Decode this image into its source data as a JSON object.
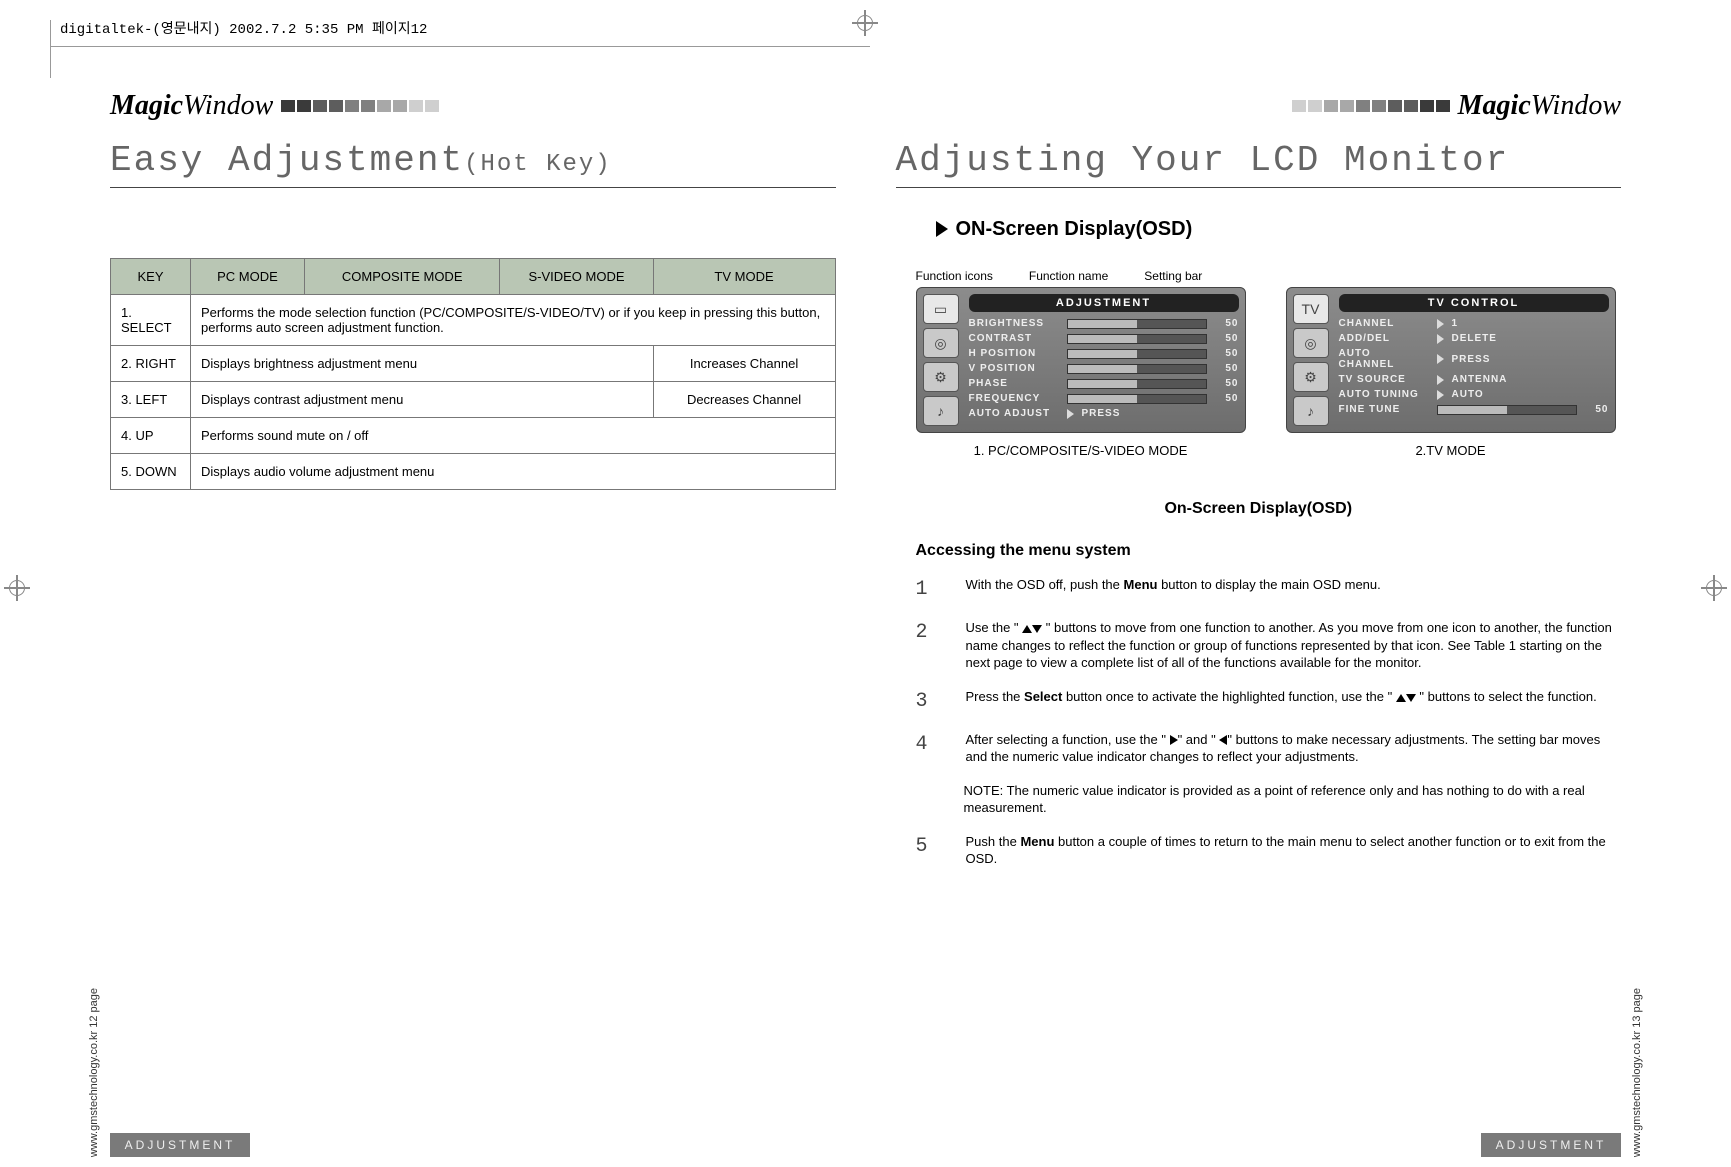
{
  "header_note": "digitaltek-(영문내지)  2002.7.2 5:35 PM  페이지12",
  "logo": {
    "bold": "Magic",
    "rest": "Window"
  },
  "block_colors": [
    "#3a3a3a",
    "#3a3a3a",
    "#5d5d5d",
    "#5d5d5d",
    "#808080",
    "#808080",
    "#a8a8a8",
    "#a8a8a8",
    "#cfcfcf",
    "#cfcfcf"
  ],
  "left_page": {
    "title_main": "Easy Adjustment",
    "title_sub": "(Hot Key)",
    "table": {
      "headers": [
        "KEY",
        "PC MODE",
        "COMPOSITE MODE",
        "S-VIDEO MODE",
        "TV MODE"
      ],
      "rows": [
        {
          "key": "1. SELECT",
          "span": "Performs the mode selection function (PC/COMPOSITE/S-VIDEO/TV) or if you keep in pressing this button, performs auto screen adjustment function."
        },
        {
          "key": "2. RIGHT",
          "left": "Displays brightness adjustment menu",
          "tv": "Increases Channel"
        },
        {
          "key": "3. LEFT",
          "left": "Displays contrast adjustment menu",
          "tv": "Decreases Channel"
        },
        {
          "key": "4. UP",
          "full": "Performs sound mute on / off"
        },
        {
          "key": "5. DOWN",
          "full": "Displays audio volume adjustment menu"
        }
      ]
    },
    "footer": "ADJUSTMENT",
    "side": "www.gmstechnology.co.kr   12 page"
  },
  "right_page": {
    "title": "Adjusting Your LCD Monitor",
    "osd_heading": "ON-Screen Display(OSD)",
    "labels": {
      "a": "Function icons",
      "b": "Function name",
      "c": "Setting bar"
    },
    "panel1": {
      "title": "ADJUSTMENT",
      "items": [
        {
          "name": "BRIGHTNESS",
          "val": "50",
          "type": "bar",
          "fill": 50
        },
        {
          "name": "CONTRAST",
          "val": "50",
          "type": "bar",
          "fill": 50
        },
        {
          "name": "H  POSITION",
          "val": "50",
          "type": "bar",
          "fill": 50
        },
        {
          "name": "V  POSITION",
          "val": "50",
          "type": "bar",
          "fill": 50
        },
        {
          "name": "PHASE",
          "val": "50",
          "type": "bar",
          "fill": 50
        },
        {
          "name": "FREQUENCY",
          "val": "50",
          "type": "bar",
          "fill": 50
        },
        {
          "name": "AUTO  ADJUST",
          "rt": "PRESS",
          "type": "arrow"
        }
      ],
      "caption": "1. PC/COMPOSITE/S-VIDEO MODE"
    },
    "panel2": {
      "title": "TV   CONTROL",
      "items": [
        {
          "name": "CHANNEL",
          "rt": "1",
          "type": "arrow"
        },
        {
          "name": "ADD/DEL",
          "rt": "DELETE",
          "type": "arrow"
        },
        {
          "name": "AUTO  CHANNEL",
          "rt": "PRESS",
          "type": "arrow"
        },
        {
          "name": "TV  SOURCE",
          "rt": "ANTENNA",
          "type": "arrow"
        },
        {
          "name": "AUTO  TUNING",
          "rt": "AUTO",
          "type": "arrow"
        },
        {
          "name": "FINE  TUNE",
          "val": "50",
          "type": "bar",
          "fill": 50
        }
      ],
      "caption": "2.TV MODE"
    },
    "center_heading": "On-Screen Display(OSD)",
    "access_heading": "Accessing the menu system",
    "steps": [
      {
        "n": "1",
        "pre": "With the OSD off, push the ",
        "bold": "Menu",
        "post": " button to display the main OSD menu."
      },
      {
        "n": "2",
        "raw": "Use the \" ▲▼ \" buttons to move from one function to another. As you move from one icon to another, the function name changes to reflect the function or group of functions represented by that icon. See Table 1 starting on the next page to view a complete list of all of the functions available for the monitor."
      },
      {
        "n": "3",
        "pre": "Press the ",
        "bold": "Select",
        "post": " button once to activate the highlighted function, use the \" ▲▼ \" buttons to select the function."
      },
      {
        "n": "4",
        "raw": "After selecting a function, use the \" ▶\" and \" ◀\" buttons to make necessary adjustments. The setting bar moves and the numeric value indicator changes to reflect your adjustments."
      },
      {
        "n": "5",
        "pre": "Push the ",
        "bold": "Menu",
        "post": " button a couple of times to return to the main menu to select another function or to exit from the OSD."
      }
    ],
    "note": "NOTE: The numeric value indicator is provided as a point of reference only and has nothing to do with a real measurement.",
    "footer": "ADJUSTMENT",
    "side": "www.gmstechnology.co.kr   13 page"
  }
}
